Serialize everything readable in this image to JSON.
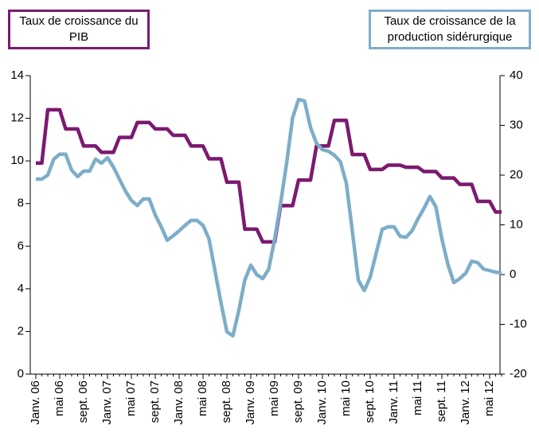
{
  "chart_data": {
    "type": "line",
    "categories": [
      "Janv. 06",
      null,
      null,
      null,
      "mai 06",
      null,
      null,
      null,
      "sept. 06",
      null,
      null,
      null,
      "Janv. 07",
      null,
      null,
      null,
      "mai 07",
      null,
      null,
      null,
      "sept. 07",
      null,
      null,
      null,
      "Janv. 08",
      null,
      null,
      null,
      "mai 08",
      null,
      null,
      null,
      "sept. 08",
      null,
      null,
      null,
      "Janv. 09",
      null,
      null,
      null,
      "mai 09",
      null,
      null,
      null,
      "sept. 09",
      null,
      null,
      null,
      "Janv. 10",
      null,
      null,
      null,
      "mai 10",
      null,
      null,
      null,
      "sept. 10",
      null,
      null,
      null,
      "Janv. 11",
      null,
      null,
      null,
      "mai 11",
      null,
      null,
      null,
      "sept. 11",
      null,
      null,
      null,
      "Janv. 12",
      null,
      null,
      null,
      "mai 12",
      null,
      null
    ],
    "series": [
      {
        "name": "Taux de croissance du PIB",
        "color": "#7b1a6f",
        "axis": "y",
        "values": [
          9.9,
          9.9,
          12.4,
          12.4,
          12.4,
          11.5,
          11.5,
          11.5,
          10.7,
          10.7,
          10.7,
          10.4,
          10.4,
          10.4,
          11.1,
          11.1,
          11.1,
          11.8,
          11.8,
          11.8,
          11.5,
          11.5,
          11.5,
          11.2,
          11.2,
          11.2,
          10.7,
          10.7,
          10.7,
          10.1,
          10.1,
          10.1,
          9.0,
          9.0,
          9.0,
          6.8,
          6.8,
          6.8,
          6.2,
          6.2,
          6.2,
          7.9,
          7.9,
          7.9,
          9.1,
          9.1,
          9.1,
          10.7,
          10.7,
          10.7,
          11.9,
          11.9,
          11.9,
          10.3,
          10.3,
          10.3,
          9.6,
          9.6,
          9.6,
          9.8,
          9.8,
          9.8,
          9.7,
          9.7,
          9.7,
          9.5,
          9.5,
          9.5,
          9.2,
          9.2,
          9.2,
          8.9,
          8.9,
          8.9,
          8.1,
          8.1,
          8.1,
          7.6,
          7.6
        ]
      },
      {
        "name": "Taux de croissance de la production sidérurgique",
        "color": "#7eadc9",
        "axis": "y2",
        "values": [
          19.2,
          19.2,
          20,
          23.2,
          24.2,
          24.2,
          21,
          19.7,
          20.8,
          20.8,
          23.2,
          22.4,
          23.5,
          21.6,
          19.2,
          16.8,
          14.9,
          13.9,
          15.2,
          15.2,
          12,
          9.6,
          6.9,
          7.8,
          8.8,
          9.9,
          10.9,
          10.9,
          9.9,
          7.2,
          0.8,
          -5.6,
          -11.5,
          -12.3,
          -7.2,
          -1.1,
          1.9,
          0,
          -0.8,
          1.1,
          7.2,
          14.4,
          22.4,
          31.5,
          35.2,
          34.9,
          29.6,
          26.4,
          25.1,
          24.8,
          24,
          22.7,
          18.4,
          8.8,
          -1.1,
          -3.2,
          -0.5,
          4.3,
          9.1,
          9.6,
          9.6,
          7.7,
          7.5,
          8.8,
          11.2,
          13.3,
          15.7,
          13.6,
          7.2,
          2.1,
          -1.6,
          -0.8,
          0.3,
          2.7,
          2.4,
          1.1,
          0.8,
          0.5,
          0.3
        ]
      }
    ],
    "ylim": [
      0,
      14
    ],
    "yticks": [
      0,
      2,
      4,
      6,
      8,
      10,
      12,
      14
    ],
    "y2lim": [
      -20,
      40
    ],
    "y2ticks": [
      -20,
      -10,
      0,
      10,
      20,
      30,
      40
    ]
  }
}
